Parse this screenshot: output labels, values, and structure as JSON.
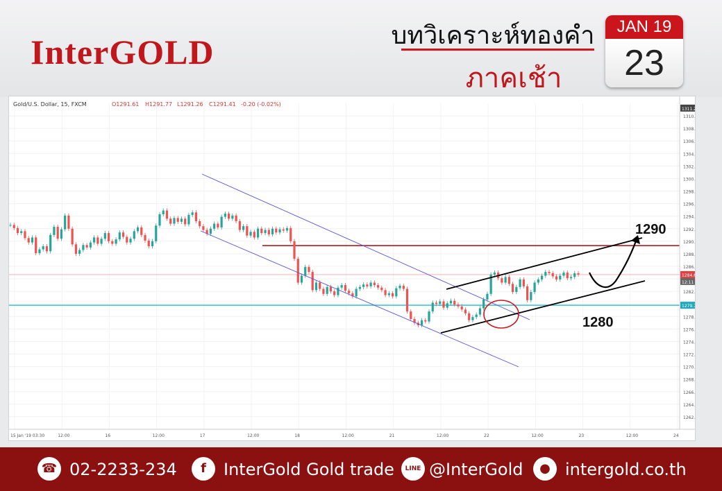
{
  "header": {
    "logo": "InterGOLD",
    "title_line1": "บทวิเคราะห์ทองคำ",
    "title_line2": "ภาคเช้า",
    "calendar_month": "JAN 19",
    "calendar_day": "23"
  },
  "chart_data": {
    "type": "candlestick",
    "instrument_label": "Gold/U.S. Dollar, 15, FXCM",
    "ohlc_readout": {
      "o": "O1291.61",
      "h": "H1291.77",
      "l": "L1291.26",
      "c": "C1291.41",
      "chg": "-0.20 (-0.02%)"
    },
    "ylim": [
      1260,
      1312
    ],
    "yticks": [
      1262,
      1264,
      1266,
      1268,
      1270,
      1272,
      1274,
      1276,
      1278,
      1280,
      1282,
      1284,
      1286,
      1288,
      1290,
      1292,
      1294,
      1296,
      1298,
      1300,
      1302,
      1304,
      1306,
      1308,
      1310
    ],
    "price_badges": [
      "1311.24",
      "1284.68",
      "12:11",
      "1279.79"
    ],
    "xticks": [
      "15 Jan '19  03:30",
      "12:00",
      "16",
      "12:00",
      "17",
      "12:00",
      "18",
      "12:00",
      "21",
      "12:00",
      "22",
      "12:00",
      "23",
      "12:00",
      "24"
    ],
    "series": [
      {
        "values": [
          1292.6,
          1292.1,
          1291.3,
          1291.6,
          1290.5,
          1289.8,
          1290.6,
          1288.1,
          1288.7,
          1289.2,
          1288.4,
          1291.0,
          1292.3,
          1290.4,
          1291.9,
          1294.1,
          1292.0,
          1289.5,
          1288.0,
          1288.6,
          1289.4,
          1289.0,
          1289.8,
          1290.6,
          1289.6,
          1290.4,
          1291.3,
          1290.0,
          1289.6,
          1290.3,
          1291.4,
          1290.7,
          1289.8,
          1290.4,
          1291.6,
          1292.2,
          1291.0,
          1290.1,
          1289.2,
          1290.0,
          1292.5,
          1294.3,
          1294.9,
          1293.6,
          1292.8,
          1293.7,
          1293.1,
          1293.6,
          1292.7,
          1294.2,
          1294.6,
          1293.2,
          1292.4,
          1291.8,
          1291.2,
          1292.0,
          1292.8,
          1292.2,
          1293.9,
          1294.4,
          1293.6,
          1294.1,
          1293.2,
          1291.8,
          1292.4,
          1290.9,
          1291.5,
          1290.6,
          1292.0,
          1291.3,
          1291.8,
          1291.1,
          1292.0,
          1291.4,
          1291.9,
          1291.7,
          1292.1,
          1290.0,
          1287.2,
          1283.4,
          1284.5,
          1285.9,
          1285.1,
          1282.2,
          1283.4,
          1282.4,
          1281.6,
          1282.7,
          1282.0,
          1281.4,
          1282.6,
          1283.0,
          1282.1,
          1281.7,
          1281.2,
          1282.4,
          1282.7,
          1283.1,
          1282.8,
          1283.4,
          1283.0,
          1282.6,
          1282.2,
          1281.4,
          1281.7,
          1281.2,
          1282.5,
          1282.9,
          1282.4,
          1278.8,
          1277.6,
          1277.0,
          1276.6,
          1277.4,
          1277.2,
          1278.8,
          1280.2,
          1280.0,
          1280.4,
          1279.4,
          1280.1,
          1280.5,
          1279.9,
          1279.6,
          1279.1,
          1278.5,
          1277.4,
          1277.9,
          1278.3,
          1279.3,
          1280.7,
          1281.6,
          1284.7,
          1285.0,
          1284.1,
          1283.4,
          1284.3,
          1283.2,
          1281.9,
          1282.7,
          1283.9,
          1282.8,
          1280.6,
          1281.9,
          1283.4,
          1283.9,
          1284.5,
          1285.1,
          1284.9,
          1284.4,
          1283.9,
          1284.5,
          1285.0,
          1284.1,
          1284.3,
          1284.9,
          1284.7
        ]
      }
    ],
    "annotations": {
      "resistance_level": 1289.3,
      "support_level": 1279.79,
      "last_price": 1284.68,
      "label_upper": "1290",
      "label_lower": "1280"
    }
  },
  "footer": {
    "phone": "02-2233-234",
    "facebook": "InterGold Gold trade",
    "line": "@InterGold",
    "website": "intergold.co.th",
    "fb_glyph": "f",
    "line_glyph": "LINE"
  }
}
